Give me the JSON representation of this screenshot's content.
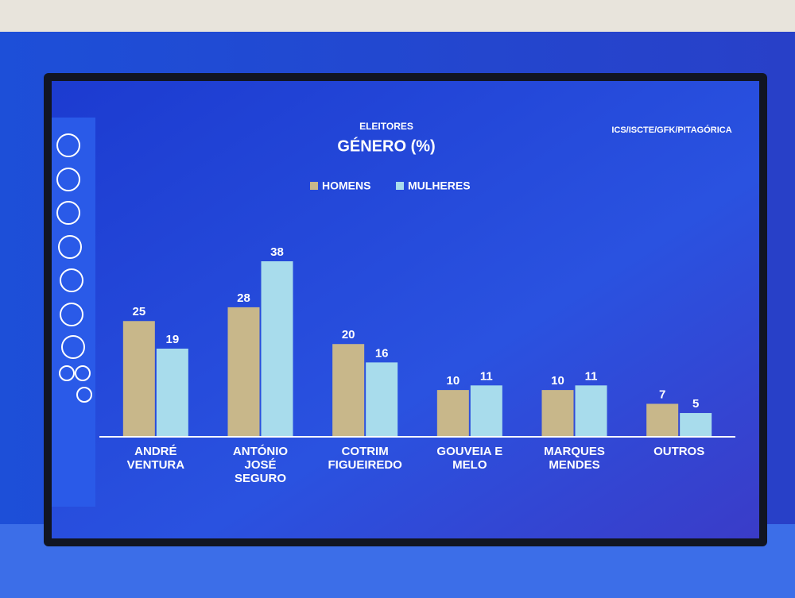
{
  "chart_data": {
    "type": "bar",
    "subtitle": "ELEITORES",
    "title": "GÉNERO (%)",
    "source": "ICS/ISCTE/GFK/PITAGÓRICA",
    "categories": [
      "ANDRÉ VENTURA",
      "ANTÓNIO JOSÉ SEGURO",
      "COTRIM FIGUEIREDO",
      "GOUVEIA E MELO",
      "MARQUES MENDES",
      "OUTROS"
    ],
    "series": [
      {
        "name": "HOMENS",
        "color": "#c8b78a",
        "values": [
          25,
          28,
          20,
          10,
          10,
          7
        ]
      },
      {
        "name": "MULHERES",
        "color": "#a8dcec",
        "values": [
          19,
          38,
          16,
          11,
          11,
          5
        ]
      }
    ],
    "legend": "top"
  }
}
